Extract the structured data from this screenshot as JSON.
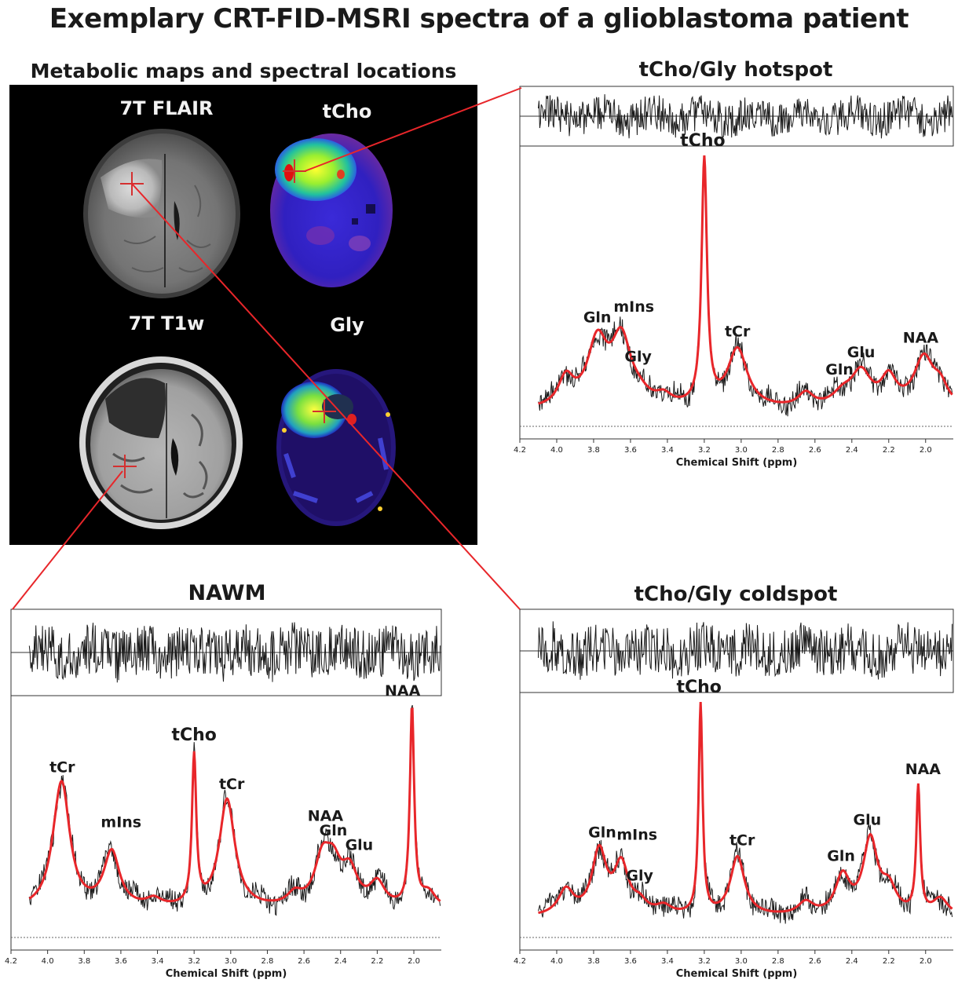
{
  "title": "Exemplary CRT-FID-MSRI spectra of a glioblastoma patient",
  "maps": {
    "section_title": "Metabolic maps and spectral locations",
    "labels": {
      "flair": "7T FLAIR",
      "tcho": "tCho",
      "t1w": "7T T1w",
      "gly": "Gly"
    }
  },
  "axis_label": "Chemical Shift (ppm)",
  "colors": {
    "fit": "#e8262a",
    "data": "#1a1a1a",
    "connector": "#e8262a"
  },
  "chart_data": [
    {
      "type": "line",
      "title": "tCho/Gly hotspot",
      "xlabel": "Chemical Shift (ppm)",
      "x_reversed": true,
      "xlim": [
        4.2,
        1.85
      ],
      "xticks": [
        "4.2",
        "4.0",
        "3.8",
        "3.6",
        "3.4",
        "3.2",
        "3.0",
        "2.8",
        "2.6",
        "2.4",
        "2.2",
        "2.0"
      ],
      "peaks": [
        {
          "label": "tCho",
          "ppm": 3.2,
          "height": 1.0
        },
        {
          "label": "Gln",
          "ppm": 3.78,
          "height": 0.26
        },
        {
          "label": "mIns",
          "ppm": 3.65,
          "height": 0.27
        },
        {
          "label": "Gly",
          "ppm": 3.55,
          "height": 0.03
        },
        {
          "label": "tCr",
          "ppm": 3.02,
          "height": 0.24
        },
        {
          "label": "Gln",
          "ppm": 2.45,
          "height": 0.05
        },
        {
          "label": "Glu",
          "ppm": 2.35,
          "height": 0.14
        },
        {
          "label": "NAA",
          "ppm": 2.01,
          "height": 0.2
        }
      ]
    },
    {
      "type": "line",
      "title": "NAWM",
      "xlabel": "Chemical Shift (ppm)",
      "x_reversed": true,
      "xlim": [
        4.2,
        1.85
      ],
      "xticks": [
        "4.2",
        "4.0",
        "3.8",
        "3.6",
        "3.4",
        "3.2",
        "3.0",
        "2.8",
        "2.6",
        "2.4",
        "2.2",
        "2.0"
      ],
      "peaks": [
        {
          "label": "tCr",
          "ppm": 3.92,
          "height": 0.55
        },
        {
          "label": "mIns",
          "ppm": 3.65,
          "height": 0.28
        },
        {
          "label": "tCho",
          "ppm": 3.2,
          "height": 0.75
        },
        {
          "label": "tCr",
          "ppm": 3.02,
          "height": 0.55
        },
        {
          "label": "NAA",
          "ppm": 2.5,
          "height": 0.22
        },
        {
          "label": "Gln",
          "ppm": 2.44,
          "height": 0.18
        },
        {
          "label": "Glu",
          "ppm": 2.35,
          "height": 0.17
        },
        {
          "label": "NAA",
          "ppm": 2.01,
          "height": 1.0
        }
      ]
    },
    {
      "type": "line",
      "title": "tCho/Gly coldspot",
      "xlabel": "Chemical Shift (ppm)",
      "x_reversed": true,
      "xlim": [
        4.2,
        1.85
      ],
      "xticks": [
        "4.2",
        "4.0",
        "3.8",
        "3.6",
        "3.4",
        "3.2",
        "3.0",
        "2.8",
        "2.6",
        "2.4",
        "2.2",
        "2.0"
      ],
      "peaks": [
        {
          "label": "tCho",
          "ppm": 3.22,
          "height": 1.0
        },
        {
          "label": "Gln",
          "ppm": 3.77,
          "height": 0.3
        },
        {
          "label": "mIns",
          "ppm": 3.65,
          "height": 0.23
        },
        {
          "label": "Gly",
          "ppm": 3.55,
          "height": 0.05
        },
        {
          "label": "tCr",
          "ppm": 3.02,
          "height": 0.28
        },
        {
          "label": "Gln",
          "ppm": 2.45,
          "height": 0.18
        },
        {
          "label": "Glu",
          "ppm": 2.3,
          "height": 0.35
        },
        {
          "label": "NAA",
          "ppm": 2.04,
          "height": 0.6
        }
      ]
    }
  ]
}
